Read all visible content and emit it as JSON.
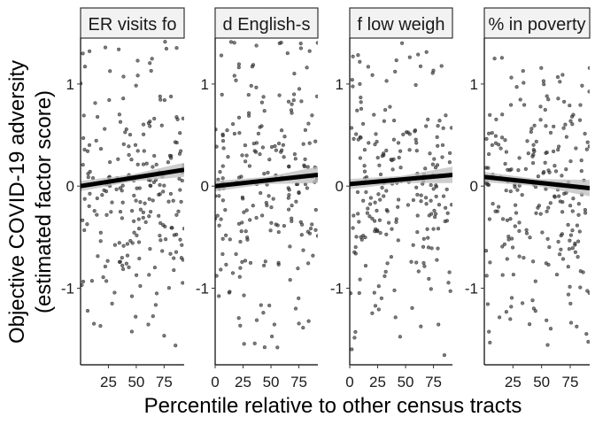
{
  "chart_data": {
    "type": "scatter",
    "layout": "facets-1x4",
    "xlabel": "Percentile relative to other census tracts",
    "ylabel_line1": "Objective COVID-19 adversity",
    "ylabel_line2": "(estimated factor score)",
    "y_ticks": [
      -1,
      0,
      1
    ],
    "ylim": [
      -1.75,
      1.45
    ],
    "grid": false,
    "point_color": "#333333",
    "point_opacity": 0.65,
    "trend_color": "#000000",
    "ribbon_color": "#bdbdbd",
    "panels": [
      {
        "strip_label": "ER visits fo",
        "xlim": [
          0,
          93
        ],
        "x_tick_values": [
          25,
          50,
          75
        ],
        "x_tick_labels": [
          "25",
          "50",
          "75"
        ],
        "trend": {
          "y_at_xmin": 0.0,
          "y_at_xmax": 0.16,
          "se_xmin": 0.05,
          "se_xmax": 0.07
        },
        "seed": 11
      },
      {
        "strip_label": "d English-s",
        "xlim": [
          0,
          92
        ],
        "x_tick_values": [
          0,
          25,
          50,
          75
        ],
        "x_tick_labels": [
          "0",
          "25",
          "50",
          "75"
        ],
        "trend": {
          "y_at_xmin": 0.0,
          "y_at_xmax": 0.11,
          "se_xmin": 0.05,
          "se_xmax": 0.08
        },
        "seed": 23
      },
      {
        "strip_label": "f low weigh",
        "xlim": [
          0,
          92
        ],
        "x_tick_values": [
          0,
          25,
          50,
          75
        ],
        "x_tick_labels": [
          "0",
          "25",
          "50",
          "75"
        ],
        "trend": {
          "y_at_xmin": 0.02,
          "y_at_xmax": 0.11,
          "se_xmin": 0.05,
          "se_xmax": 0.08
        },
        "seed": 37
      },
      {
        "strip_label": "% in poverty",
        "xlim": [
          0,
          92
        ],
        "x_tick_values": [
          25,
          50,
          75
        ],
        "x_tick_labels": [
          "25",
          "50",
          "75"
        ],
        "trend": {
          "y_at_xmin": 0.09,
          "y_at_xmax": -0.02,
          "se_xmin": 0.05,
          "se_xmax": 0.08
        },
        "seed": 53
      }
    ]
  }
}
